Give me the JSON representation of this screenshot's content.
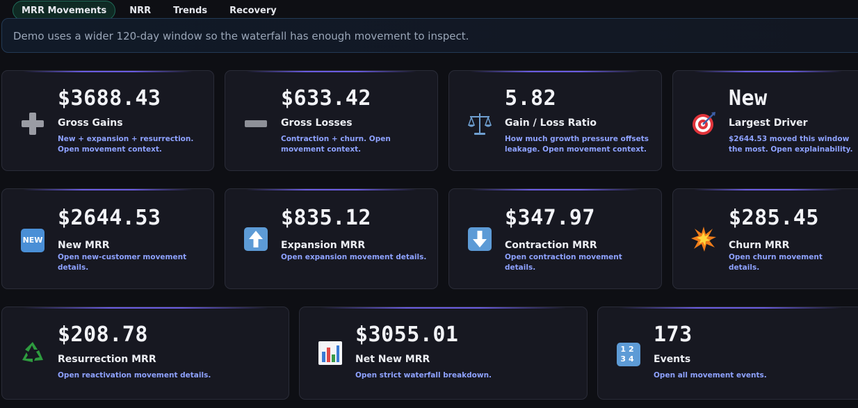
{
  "tabs": [
    {
      "label": "MRR Movements",
      "active": true
    },
    {
      "label": "NRR",
      "active": false
    },
    {
      "label": "Trends",
      "active": false
    },
    {
      "label": "Recovery",
      "active": false
    }
  ],
  "banner": {
    "text": "Demo uses a wider 120-day window so the waterfall has enough movement to inspect."
  },
  "colors": {
    "accent_bar": "#6a5ce0",
    "link_text": "#8ea2ff",
    "active_tab_border": "#1f6b58"
  },
  "cards": [
    {
      "icon": "plus-icon",
      "value": "$3688.43",
      "label": "Gross Gains",
      "desc": "New + expansion + resurrection. Open movement context."
    },
    {
      "icon": "minus-icon",
      "value": "$633.42",
      "label": "Gross Losses",
      "desc": "Contraction + churn. Open movement context."
    },
    {
      "icon": "scales-icon",
      "value": "5.82",
      "label": "Gain / Loss Ratio",
      "desc": "How much growth pressure offsets leakage. Open movement context."
    },
    {
      "icon": "target-icon",
      "value": "New",
      "label": "Largest Driver",
      "desc": "$2644.53 moved this window the most. Open explainability."
    },
    {
      "icon": "new-badge-icon",
      "value": "$2644.53",
      "label": "New MRR",
      "desc": "Open new-customer movement details."
    },
    {
      "icon": "up-arrow-icon",
      "value": "$835.12",
      "label": "Expansion MRR",
      "desc": "Open expansion movement details."
    },
    {
      "icon": "down-arrow-icon",
      "value": "$347.97",
      "label": "Contraction MRR",
      "desc": "Open contraction movement details."
    },
    {
      "icon": "collision-icon",
      "value": "$285.45",
      "label": "Churn MRR",
      "desc": "Open churn movement details."
    },
    {
      "icon": "recycle-icon",
      "value": "$208.78",
      "label": "Resurrection MRR",
      "desc": "Open reactivation movement details."
    },
    {
      "icon": "bar-chart-icon",
      "value": "$3055.01",
      "label": "Net New MRR",
      "desc": "Open strict waterfall breakdown."
    },
    {
      "icon": "numbers-icon",
      "value": "173",
      "label": "Events",
      "desc": "Open all movement events."
    }
  ],
  "icon_glyphs": {
    "new_badge": "NEW",
    "numbers": "1234"
  }
}
